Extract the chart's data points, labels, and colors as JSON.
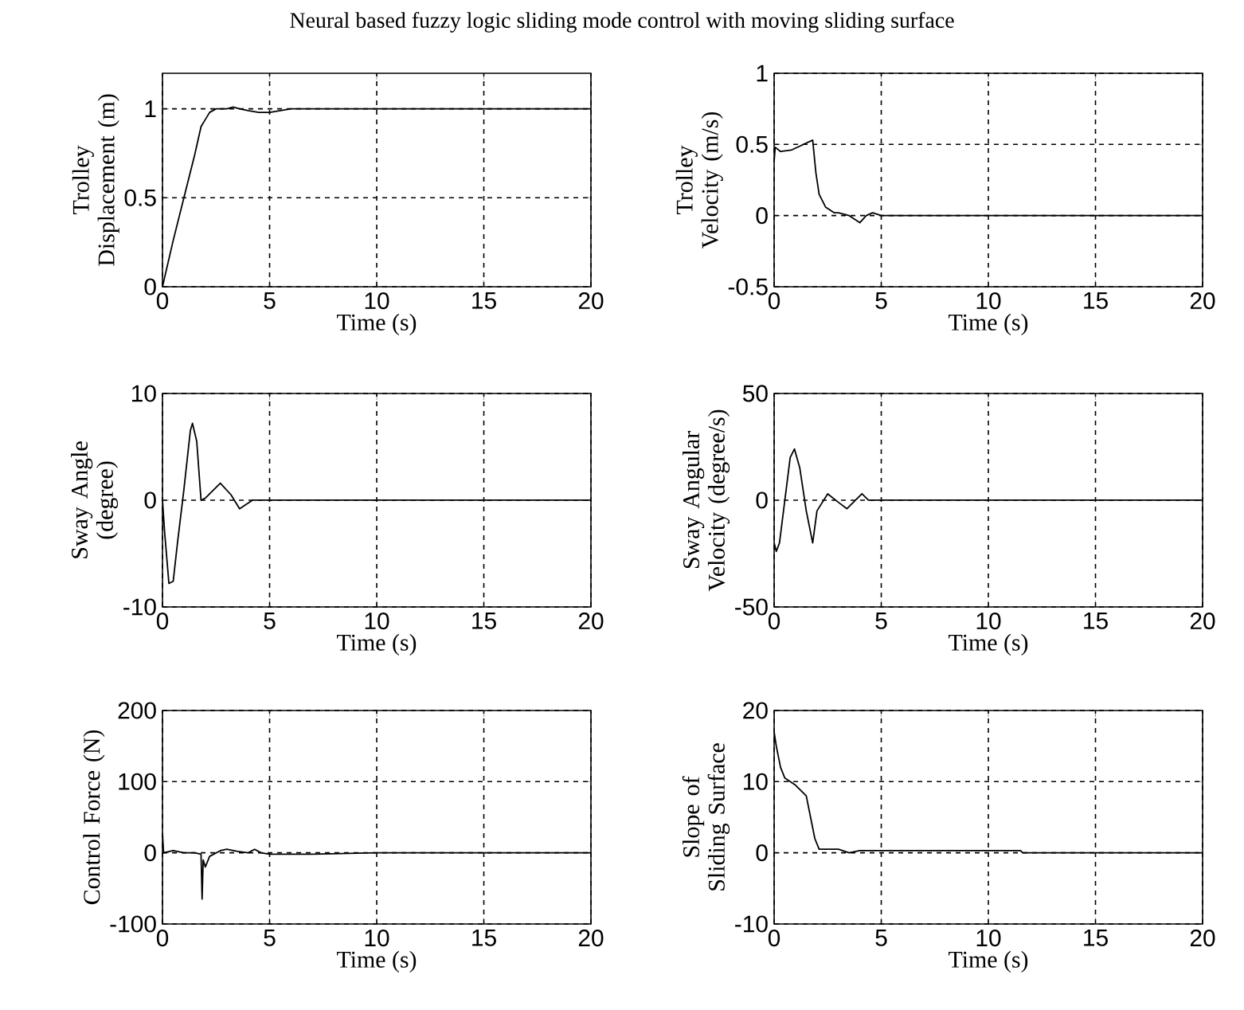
{
  "chart_data": [
    {
      "type": "line",
      "title": "Neural based fuzzy logic sliding mode control with moving sliding surface",
      "xlabel": "Time (s)",
      "ylabel": "Trolley Displacement (m)",
      "color": "#000000",
      "grid": true,
      "xlim": [
        0,
        20
      ],
      "ylim": [
        0,
        1.2
      ],
      "xticks": [
        0,
        5,
        10,
        15,
        20
      ],
      "yticks": [
        0,
        0.5,
        1
      ],
      "x": [
        0,
        0.5,
        1,
        1.5,
        1.8,
        2.2,
        2.5,
        3,
        3.3,
        3.6,
        4,
        4.5,
        5,
        5.5,
        6,
        20
      ],
      "values": [
        0,
        0.26,
        0.5,
        0.74,
        0.9,
        0.98,
        1.0,
        1.0,
        1.01,
        1.0,
        0.99,
        0.98,
        0.98,
        0.99,
        1.0,
        1.0
      ]
    },
    {
      "type": "line",
      "xlabel": "Time (s)",
      "ylabel": "Trolley Velocity (m/s)",
      "color": "#000000",
      "grid": true,
      "xlim": [
        0,
        20
      ],
      "ylim": [
        -0.5,
        1
      ],
      "xticks": [
        0,
        5,
        10,
        15,
        20
      ],
      "yticks": [
        -0.5,
        0,
        0.5,
        1
      ],
      "x": [
        0,
        0.05,
        0.3,
        0.8,
        1.8,
        1.95,
        2.1,
        2.4,
        2.8,
        3.0,
        3.5,
        4.0,
        4.3,
        4.6,
        5,
        20
      ],
      "values": [
        0.38,
        0.48,
        0.45,
        0.46,
        0.53,
        0.3,
        0.15,
        0.06,
        0.02,
        0.02,
        0.0,
        -0.05,
        0.0,
        0.02,
        0,
        0
      ]
    },
    {
      "type": "line",
      "xlabel": "Time (s)",
      "ylabel": "Sway Angle (degree)",
      "color": "#000000",
      "grid": true,
      "xlim": [
        0,
        20
      ],
      "ylim": [
        -10,
        10
      ],
      "xticks": [
        0,
        5,
        10,
        15,
        20
      ],
      "yticks": [
        -10,
        0,
        10
      ],
      "x": [
        0,
        0.1,
        0.3,
        0.5,
        0.7,
        1.0,
        1.3,
        1.4,
        1.6,
        1.8,
        2.0,
        2.7,
        3.2,
        3.6,
        3.9,
        4.2,
        20
      ],
      "values": [
        0,
        -3,
        -7.8,
        -7.6,
        -4,
        1,
        6.5,
        7.2,
        5.5,
        0,
        0.2,
        1.6,
        0.5,
        -0.8,
        -0.4,
        0,
        0
      ]
    },
    {
      "type": "line",
      "xlabel": "Time (s)",
      "ylabel": "Sway Angular Velocity (degree/s)",
      "color": "#000000",
      "grid": true,
      "xlim": [
        0,
        20
      ],
      "ylim": [
        -50,
        50
      ],
      "xticks": [
        0,
        5,
        10,
        15,
        20
      ],
      "yticks": [
        -50,
        0,
        50
      ],
      "x": [
        0,
        0.1,
        0.25,
        0.5,
        0.75,
        0.95,
        1.2,
        1.5,
        1.8,
        2.0,
        2.5,
        3.0,
        3.4,
        3.8,
        4.1,
        4.4,
        20
      ],
      "values": [
        -20,
        -24,
        -20,
        0,
        20,
        24,
        15,
        -5,
        -20,
        -5,
        3,
        -1,
        -4,
        0,
        3,
        0,
        0
      ]
    },
    {
      "type": "line",
      "xlabel": "Time (s)",
      "ylabel": "Control Force (N)",
      "color": "#000000",
      "grid": true,
      "xlim": [
        0,
        20
      ],
      "ylim": [
        -100,
        200
      ],
      "xticks": [
        0,
        5,
        10,
        15,
        20
      ],
      "yticks": [
        -100,
        0,
        100,
        200
      ],
      "x": [
        0,
        0.05,
        0.5,
        1,
        1.5,
        1.8,
        1.85,
        1.9,
        2.0,
        2.2,
        2.7,
        3,
        3.5,
        4.0,
        4.3,
        4.6,
        5,
        7,
        10,
        12,
        20
      ],
      "values": [
        28,
        0,
        3,
        0,
        0,
        -2,
        -65,
        -10,
        -20,
        -5,
        3,
        5,
        2,
        0,
        5,
        0,
        -2,
        -2,
        0,
        0,
        0
      ]
    },
    {
      "type": "line",
      "xlabel": "Time (s)",
      "ylabel": "Slope of Sliding Surface",
      "color": "#000000",
      "grid": true,
      "xlim": [
        0,
        20
      ],
      "ylim": [
        -10,
        20
      ],
      "xticks": [
        0,
        5,
        10,
        15,
        20
      ],
      "yticks": [
        -10,
        0,
        10,
        20
      ],
      "x": [
        0,
        0.1,
        0.3,
        0.5,
        1.0,
        1.5,
        1.7,
        1.9,
        2.1,
        3,
        3.5,
        4,
        11.5,
        11.6,
        20
      ],
      "values": [
        17,
        15,
        12,
        10.5,
        9.5,
        8,
        5,
        2,
        0.5,
        0.5,
        0,
        0.3,
        0.3,
        0,
        0
      ]
    }
  ]
}
